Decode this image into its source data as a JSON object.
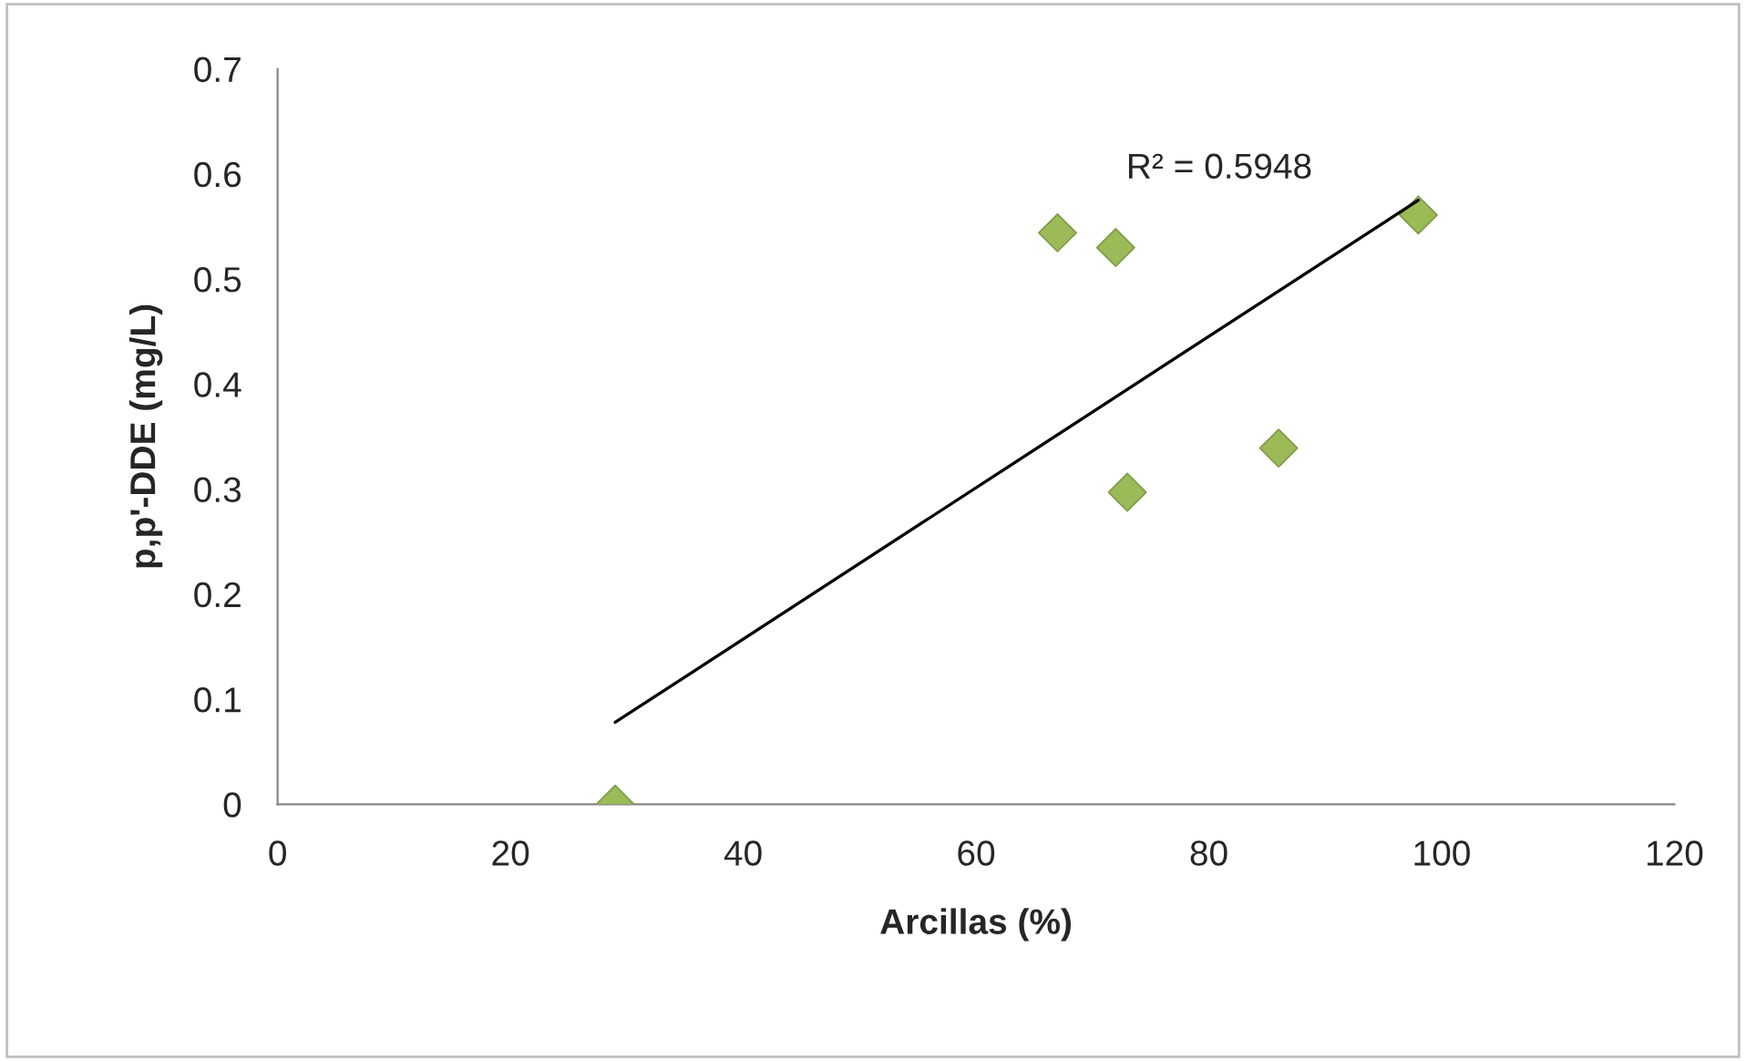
{
  "chart_data": {
    "type": "scatter",
    "xlabel": "Arcillas (%)",
    "ylabel": "p,p'-DDE (mg/L)",
    "series": [
      {
        "color": "#9bbb59",
        "marker": "diamond",
        "x": [
          29,
          67,
          72,
          73,
          86,
          98
        ],
        "values": [
          0,
          0.544,
          0.53,
          0.297,
          0.339,
          0.561
        ]
      },
      {
        "type": "line",
        "color": "#000000",
        "marker": "none",
        "line_style": "solid",
        "x": [
          29,
          98
        ],
        "values": [
          0.078,
          0.575
        ]
      }
    ],
    "annotations": [
      "R² = 0.5948"
    ],
    "xlim": [
      0,
      120
    ],
    "xticks": [
      0,
      20,
      40,
      60,
      80,
      100,
      120
    ],
    "ylim": [
      0,
      0.7
    ],
    "yticks": [
      0,
      0.1,
      0.2,
      0.3,
      0.4,
      0.5,
      0.6,
      0.7
    ],
    "grid": false,
    "legend": false
  }
}
